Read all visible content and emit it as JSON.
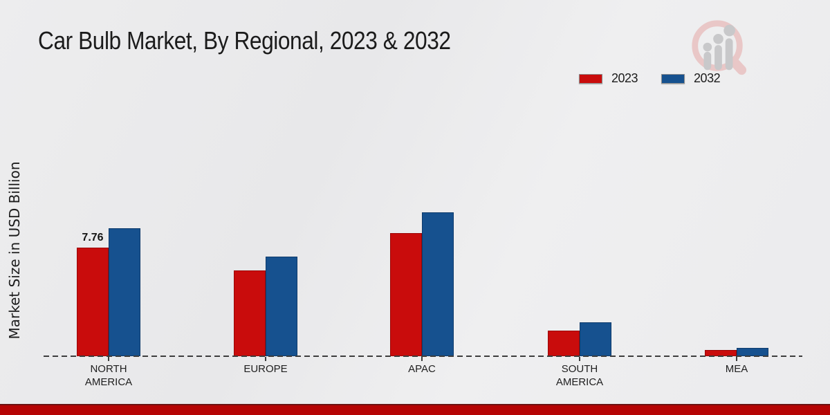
{
  "title": "Car Bulb Market, By Regional, 2023 & 2032",
  "y_axis_label": "Market Size in USD Billion",
  "legend": {
    "items": [
      {
        "label": "2023",
        "color": "#c90c0c"
      },
      {
        "label": "2032",
        "color": "#16518f"
      }
    ]
  },
  "logo": {
    "name": "market-research-magnifier-bar-chart-logo",
    "ring_color": "#e9c5c5",
    "bars_color": "#c7c7c9"
  },
  "colors": {
    "bar_2023": "#c90c0c",
    "bar_2023_border": "#9b0606",
    "bar_2032": "#16518f",
    "bar_2032_border": "#0d3a6b",
    "baseline": "#3c3c3c",
    "footer": "#b50404",
    "background": "#ebebed"
  },
  "chart_data": {
    "type": "bar",
    "title": "Car Bulb Market, By Regional, 2023 & 2032",
    "ylabel": "Market Size in USD Billion",
    "categories": [
      "NORTH AMERICA",
      "EUROPE",
      "APAC",
      "SOUTH AMERICA",
      "MEA"
    ],
    "series": [
      {
        "name": "2023",
        "color": "#c90c0c",
        "values": [
          7.76,
          6.12,
          8.8,
          1.83,
          0.45
        ],
        "point_labels": [
          "7.76",
          "",
          "",
          "",
          ""
        ]
      },
      {
        "name": "2032",
        "color": "#16518f",
        "values": [
          9.15,
          7.12,
          10.28,
          2.4,
          0.6
        ],
        "point_labels": [
          "",
          "",
          "",
          "",
          ""
        ]
      }
    ],
    "ylim": [
      0,
      11
    ],
    "grid": false,
    "baseline_style": "dashed",
    "legend_position": "top-right",
    "data_label_note": "only NORTH AMERICA 2023 bar is labeled (7.76)"
  },
  "footer": {
    "color": "#b50404"
  }
}
